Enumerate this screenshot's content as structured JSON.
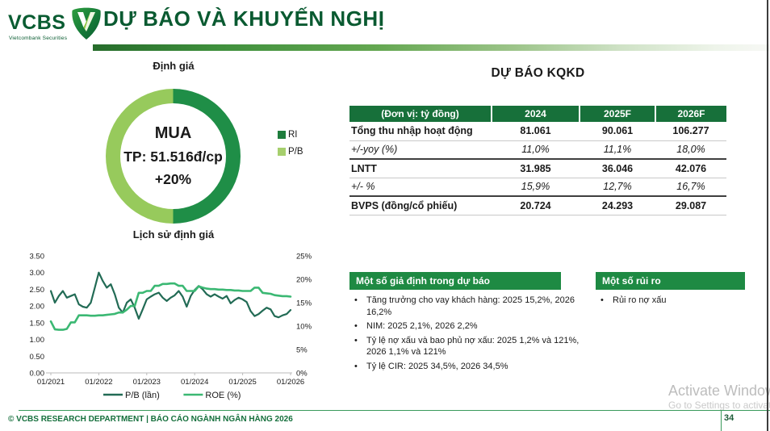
{
  "header": {
    "logo_text": "VCBS",
    "logo_subtext": "Vietcombank Securities",
    "title": "DỰ BÁO VÀ KHUYẾN NGHỊ"
  },
  "colors": {
    "brand_dark_green": "#0a5a31",
    "table_header_green": "#17703a",
    "section_header_green": "#1e8a43",
    "footer_green": "#3a9a5c"
  },
  "valuation": {
    "title": "Định giá",
    "rating": "MUA",
    "target_price": "TP: 51.516đ/cp",
    "upside": "+20%",
    "legend": [
      {
        "label": "RI",
        "color": "#1e7c3c"
      },
      {
        "label": "P/B",
        "color": "#a6cf6d"
      }
    ]
  },
  "kqkd": {
    "title": "DỰ BÁO KQKD",
    "columns": [
      "(Đơn vị: tỷ đồng)",
      "2024",
      "2025F",
      "2026F"
    ],
    "rows": [
      {
        "label": "Tổng thu nhập hoạt động",
        "values": [
          "81.061",
          "90.061",
          "106.277"
        ],
        "style": "bold"
      },
      {
        "label": "+/-yoy (%)",
        "values": [
          "11,0%",
          "11,1%",
          "18,0%"
        ],
        "style": "italic"
      },
      {
        "label": "LNTT",
        "values": [
          "31.985",
          "36.046",
          "42.076"
        ],
        "style": "bold"
      },
      {
        "label": "+/- %",
        "values": [
          "15,9%",
          "12,7%",
          "16,7%"
        ],
        "style": "italic"
      },
      {
        "label": "BVPS (đồng/cổ phiếu)",
        "values": [
          "20.724",
          "24.293",
          "29.087"
        ],
        "style": "bold"
      }
    ]
  },
  "assumptions": {
    "title": "Một số giả định trong dự báo",
    "items": [
      "Tăng trưởng cho vay khách hàng: 2025 15,2%, 2026 16,2%",
      "NIM: 2025 2,1%, 2026 2,2%",
      "Tỷ lệ nợ xấu và bao phủ nợ xấu: 2025 1,2% và 121%, 2026 1,1% và 121%",
      "Tỷ lệ CIR: 2025 34,5%, 2026 34,5%"
    ]
  },
  "risks": {
    "title": "Một số rủi ro",
    "items": [
      "Rủi ro nợ xấu"
    ]
  },
  "chart_data": [
    {
      "type": "pie",
      "title": "Định giá",
      "donut": true,
      "slices": [
        {
          "label": "RI",
          "value": 50,
          "color": "#1f8e47"
        },
        {
          "label": "P/B",
          "value": 50,
          "color": "#97ca5c"
        }
      ],
      "center_text": [
        "MUA",
        "TP: 51.516đ/cp",
        "+20%"
      ],
      "legend_position": "right"
    },
    {
      "type": "line",
      "title": "Lịch sử định giá",
      "x_ticks": [
        "01/2021",
        "01/2022",
        "01/2023",
        "01/2024",
        "01/2025",
        "01/2026"
      ],
      "y_left": {
        "ticks": [
          "3.50",
          "3.00",
          "2.50",
          "2.00",
          "1.50",
          "1.00",
          "0.50",
          "0.00"
        ],
        "min": 0,
        "max": 3.5
      },
      "y_right": {
        "ticks": [
          "25%",
          "20%",
          "15%",
          "10%",
          "5%",
          "0%"
        ],
        "min": 0,
        "max": 25
      },
      "grid": false,
      "legend_position": "bottom",
      "series": [
        {
          "name": "P/B (lần)",
          "axis": "left",
          "color": "#226b55",
          "values": [
            2.45,
            2.1,
            2.3,
            2.45,
            2.25,
            2.3,
            2.35,
            2.05,
            1.98,
            1.95,
            2.1,
            2.55,
            3.0,
            2.75,
            2.55,
            2.65,
            2.35,
            1.95,
            1.8,
            2.1,
            2.2,
            1.95,
            1.62,
            1.9,
            2.2,
            2.28,
            2.35,
            2.4,
            2.25,
            2.15,
            2.25,
            2.32,
            2.45,
            2.28,
            1.98,
            2.3,
            2.48,
            2.6,
            2.5,
            2.35,
            2.28,
            2.35,
            2.28,
            2.22,
            2.3,
            2.08,
            2.18,
            2.25,
            2.2,
            2.12,
            1.85,
            1.7,
            1.76,
            1.86,
            1.95,
            1.9,
            1.7,
            1.66,
            1.72,
            1.76,
            1.88
          ]
        },
        {
          "name": "ROE (%)",
          "axis": "right",
          "color": "#3bb873",
          "values": [
            11.0,
            9.3,
            9.2,
            9.2,
            9.4,
            10.8,
            10.8,
            12.3,
            12.3,
            12.3,
            12.2,
            12.2,
            12.3,
            12.3,
            12.4,
            12.5,
            12.6,
            12.9,
            12.9,
            13.5,
            14.3,
            14.3,
            17.1,
            17.1,
            17.5,
            17.5,
            18.6,
            18.6,
            19.0,
            19.0,
            19.1,
            19.1,
            18.6,
            18.6,
            17.5,
            17.5,
            17.5,
            18.5,
            18.2,
            18.0,
            17.9,
            17.9,
            17.8,
            17.8,
            17.7,
            17.7,
            17.6,
            17.6,
            17.5,
            17.5,
            17.5,
            18.2,
            18.2,
            17.1,
            17.0,
            16.9,
            16.6,
            16.5,
            16.4,
            16.4,
            16.3
          ]
        }
      ]
    }
  ],
  "watermark": {
    "line1": "Activate Windows",
    "line2": "Go to Settings to activate Windows."
  },
  "footer": {
    "copyright": "© VCBS RESEARCH DEPARTMENT | BÁO CÁO NGÀNH NGÂN HÀNG 2026",
    "page": "34"
  }
}
